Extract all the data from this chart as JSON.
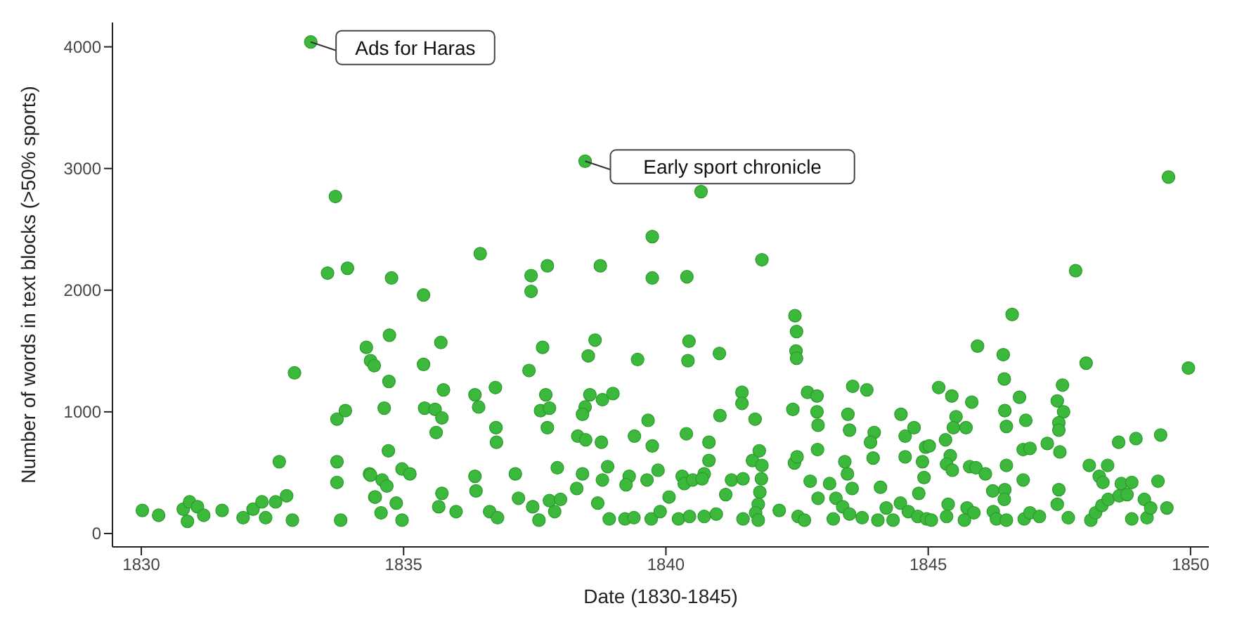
{
  "chart_data": {
    "type": "scatter",
    "xlabel": "Date (1830-1845)",
    "ylabel": "Number of words in text blocks (>50% sports)",
    "xlim": [
      1829.45,
      1850.35
    ],
    "xticks": [
      1830,
      1835,
      1840,
      1845,
      1850
    ],
    "ylim": [
      -110,
      4200
    ],
    "yticks": [
      0,
      1000,
      2000,
      3000,
      4000
    ],
    "grid": false,
    "legend": false,
    "marker": "circle",
    "annotations": [
      {
        "text": "Ads for Haras",
        "x": 1833.23,
        "y": 4040
      },
      {
        "text": "Early sport chronicle",
        "x": 1838.46,
        "y": 3060
      }
    ],
    "series": [
      {
        "color": "#3cb93c",
        "x": [
          1830.02,
          1830.33,
          1830.8,
          1830.92,
          1830.88,
          1831.07,
          1831.19,
          1831.54,
          1831.94,
          1832.13,
          1832.3,
          1832.37,
          1832.56,
          1832.77,
          1832.63,
          1832.92,
          1832.88,
          1833.23,
          1833.7,
          1833.55,
          1833.93,
          1833.73,
          1833.89,
          1833.73,
          1833.73,
          1833.8,
          1834.29,
          1834.37,
          1834.35,
          1834.45,
          1834.44,
          1834.77,
          1834.73,
          1834.72,
          1834.63,
          1834.71,
          1834.37,
          1834.59,
          1834.68,
          1834.46,
          1834.57,
          1834.86,
          1834.97,
          1834.97,
          1835.12,
          1835.38,
          1835.38,
          1835.4,
          1835.6,
          1835.73,
          1835.62,
          1835.71,
          1835.76,
          1835.67,
          1835.73,
          1836.0,
          1836.46,
          1836.36,
          1836.43,
          1836.36,
          1836.38,
          1836.75,
          1836.76,
          1836.77,
          1836.64,
          1836.79,
          1837.13,
          1837.19,
          1837.43,
          1837.43,
          1837.39,
          1837.74,
          1837.65,
          1837.71,
          1837.61,
          1837.78,
          1837.74,
          1837.46,
          1837.58,
          1837.78,
          1837.93,
          1837.88,
          1837.99,
          1838.46,
          1838.75,
          1838.65,
          1838.52,
          1838.55,
          1838.46,
          1838.41,
          1838.79,
          1838.99,
          1838.32,
          1838.47,
          1838.77,
          1838.41,
          1838.3,
          1838.79,
          1838.89,
          1838.7,
          1838.92,
          1839.22,
          1839.39,
          1839.46,
          1839.4,
          1839.66,
          1839.74,
          1839.74,
          1839.74,
          1839.3,
          1839.24,
          1839.64,
          1839.72,
          1840.67,
          1840.4,
          1841.83,
          1840.44,
          1840.42,
          1841.02,
          1841.45,
          1841.45,
          1841.03,
          1841.7,
          1842.46,
          1842.49,
          1842.48,
          1842.49,
          1842.42,
          1842.7,
          1842.88,
          1842.88,
          1842.9,
          1842.89,
          1840.39,
          1840.82,
          1840.31,
          1840.35,
          1840.51,
          1840.73,
          1840.82,
          1840.69,
          1839.85,
          1840.06,
          1839.89,
          1840.24,
          1840.45,
          1840.73,
          1840.96,
          1841.14,
          1841.25,
          1841.47,
          1841.65,
          1841.78,
          1841.83,
          1841.82,
          1841.79,
          1841.76,
          1841.47,
          1841.71,
          1841.76,
          1842.16,
          1842.45,
          1842.5,
          1842.75,
          1842.9,
          1842.52,
          1842.64,
          1843.12,
          1843.24,
          1843.37,
          1843.19,
          1843.47,
          1843.5,
          1843.56,
          1843.83,
          1843.41,
          1843.46,
          1843.55,
          1843.5,
          1843.74,
          1843.97,
          1843.9,
          1843.95,
          1844.09,
          1844.04,
          1844.2,
          1844.33,
          1844.48,
          1844.56,
          1844.73,
          1844.56,
          1844.95,
          1844.89,
          1844.92,
          1844.82,
          1844.47,
          1844.62,
          1844.8,
          1844.97,
          1845.2,
          1849.58,
          1847.81,
          1846.6,
          1845.94,
          1848.01,
          1849.96,
          1846.43,
          1846.45,
          1845.45,
          1845.83,
          1847.56,
          1847.46,
          1846.74,
          1846.46,
          1846.86,
          1846.49,
          1847.58,
          1847.49,
          1847.49,
          1845.53,
          1845.48,
          1845.72,
          1845.33,
          1845.02,
          1847.27,
          1846.81,
          1846.94,
          1847.51,
          1848.63,
          1848.96,
          1849.43,
          1845.42,
          1845.35,
          1845.46,
          1845.79,
          1845.91,
          1846.09,
          1846.49,
          1846.81,
          1848.07,
          1848.42,
          1848.26,
          1848.33,
          1848.68,
          1848.88,
          1849.38,
          1846.23,
          1846.46,
          1846.45,
          1847.49,
          1847.46,
          1845.06,
          1845.38,
          1845.35,
          1845.74,
          1845.87,
          1845.69,
          1846.24,
          1846.3,
          1846.49,
          1846.83,
          1846.94,
          1847.12,
          1847.67,
          1848.1,
          1848.19,
          1848.31,
          1848.43,
          1848.64,
          1848.79,
          1848.88,
          1849.12,
          1849.17,
          1849.24,
          1849.55
        ],
        "values": [
          190,
          150,
          200,
          260,
          100,
          220,
          150,
          190,
          130,
          200,
          260,
          130,
          260,
          310,
          590,
          1320,
          110,
          4040,
          2770,
          2140,
          2180,
          940,
          1010,
          590,
          420,
          110,
          1530,
          1420,
          490,
          300,
          1380,
          2100,
          1630,
          1250,
          1030,
          680,
          480,
          440,
          390,
          300,
          170,
          250,
          110,
          530,
          490,
          1960,
          1390,
          1030,
          1020,
          950,
          830,
          1570,
          1180,
          220,
          330,
          180,
          2300,
          1140,
          1040,
          470,
          350,
          1200,
          870,
          750,
          180,
          130,
          490,
          290,
          2120,
          1990,
          1340,
          2200,
          1530,
          1140,
          1010,
          1030,
          870,
          220,
          110,
          270,
          540,
          180,
          280,
          3060,
          2200,
          1590,
          1460,
          1140,
          1040,
          980,
          1100,
          1150,
          800,
          770,
          750,
          490,
          370,
          440,
          550,
          250,
          120,
          120,
          130,
          1430,
          800,
          930,
          720,
          2440,
          2100,
          470,
          400,
          440,
          120,
          2810,
          2110,
          2250,
          1580,
          1420,
          1480,
          1160,
          1070,
          970,
          940,
          1790,
          1660,
          1500,
          1440,
          1020,
          1160,
          1130,
          1000,
          890,
          690,
          820,
          750,
          470,
          410,
          440,
          490,
          600,
          450,
          520,
          300,
          180,
          120,
          140,
          140,
          160,
          320,
          440,
          450,
          600,
          680,
          560,
          450,
          340,
          240,
          120,
          170,
          110,
          190,
          580,
          630,
          430,
          290,
          140,
          110,
          410,
          290,
          220,
          120,
          980,
          850,
          1210,
          1180,
          590,
          490,
          370,
          160,
          130,
          830,
          750,
          620,
          380,
          110,
          210,
          110,
          980,
          800,
          870,
          630,
          710,
          590,
          460,
          330,
          250,
          180,
          140,
          120,
          1200,
          2930,
          2160,
          1800,
          1540,
          1400,
          1360,
          1470,
          1270,
          1130,
          1080,
          1220,
          1090,
          1120,
          1010,
          930,
          880,
          1000,
          910,
          850,
          960,
          870,
          870,
          770,
          720,
          740,
          690,
          700,
          670,
          750,
          780,
          810,
          640,
          570,
          520,
          550,
          540,
          490,
          560,
          440,
          560,
          560,
          470,
          420,
          410,
          420,
          430,
          350,
          360,
          280,
          360,
          240,
          110,
          240,
          140,
          210,
          170,
          110,
          180,
          120,
          110,
          120,
          170,
          140,
          130,
          110,
          170,
          230,
          280,
          310,
          320,
          120,
          280,
          130,
          210,
          210
        ]
      }
    ]
  }
}
